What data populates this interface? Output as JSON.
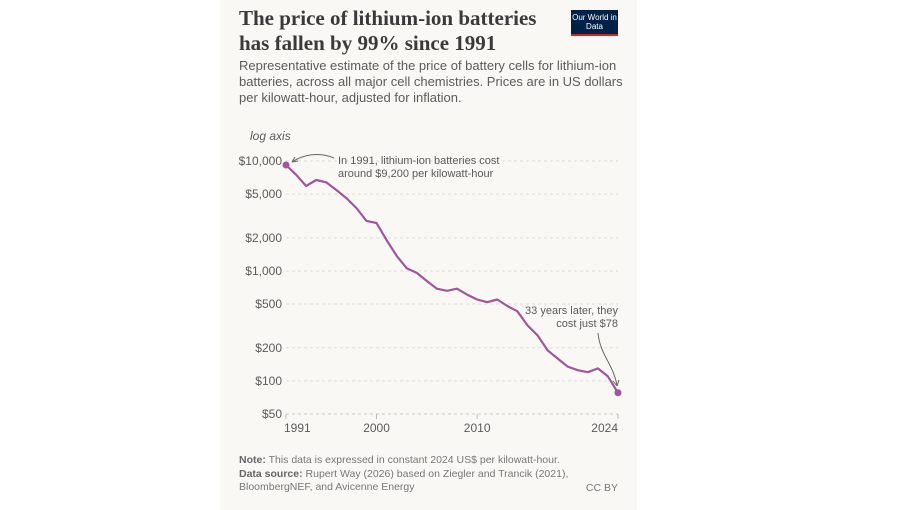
{
  "header": {
    "title": "The price of lithium-ion batteries has fallen by 99% since 1991",
    "subtitle": "Representative estimate of the price of battery cells for lithium-ion batteries, across all major cell chemistries. Prices are in US dollars per kilowatt-hour, adjusted for inflation.",
    "logo_text": "Our World in Data"
  },
  "footer": {
    "note_label": "Note:",
    "note": "This data is expressed in constant 2024 US$ per kilowatt-hour.",
    "source_label": "Data source:",
    "source": "Rupert Way (2026) based on Ziegler and Trancik (2021), BloombergNEF, and Avicenne Energy",
    "license": "CC BY"
  },
  "colors": {
    "line": "#a2559c",
    "background": "#f9f8f4",
    "logo": "#002147",
    "logo_accent": "#ce261e"
  },
  "chart_data": {
    "type": "line",
    "title": "The price of lithium-ion batteries has fallen by 99% since 1991",
    "ylabel": "log axis",
    "yscale": "log",
    "ylim": [
      50,
      10000
    ],
    "xlim": [
      1991,
      2024
    ],
    "yticks": [
      50,
      100,
      200,
      500,
      1000,
      2000,
      5000,
      10000
    ],
    "ytick_labels": [
      "$50",
      "$100",
      "$200",
      "$500",
      "$1,000",
      "$2,000",
      "$5,000",
      "$10,000"
    ],
    "xticks": [
      1991,
      2000,
      2010,
      2024
    ],
    "xtick_labels": [
      "1991",
      "2000",
      "2010",
      "2024"
    ],
    "grid": "horizontal dashed",
    "x": [
      1991,
      1992,
      1993,
      1994,
      1995,
      1996,
      1997,
      1998,
      1999,
      2000,
      2001,
      2002,
      2003,
      2004,
      2005,
      2006,
      2007,
      2008,
      2009,
      2010,
      2011,
      2012,
      2013,
      2014,
      2015,
      2016,
      2017,
      2018,
      2019,
      2020,
      2021,
      2022,
      2023,
      2024
    ],
    "values": [
      9200,
      7500,
      5930,
      6720,
      6400,
      5450,
      4600,
      3740,
      2850,
      2730,
      1910,
      1370,
      1060,
      960,
      810,
      690,
      660,
      690,
      610,
      550,
      520,
      550,
      480,
      430,
      320,
      260,
      190,
      160,
      135,
      125,
      120,
      130,
      110,
      78
    ],
    "annotations": [
      {
        "text": [
          "In 1991, lithium-ion batteries cost",
          "around $9,200 per kilowatt-hour"
        ]
      },
      {
        "text": [
          "33 years later, they",
          "cost just $78"
        ]
      }
    ]
  }
}
